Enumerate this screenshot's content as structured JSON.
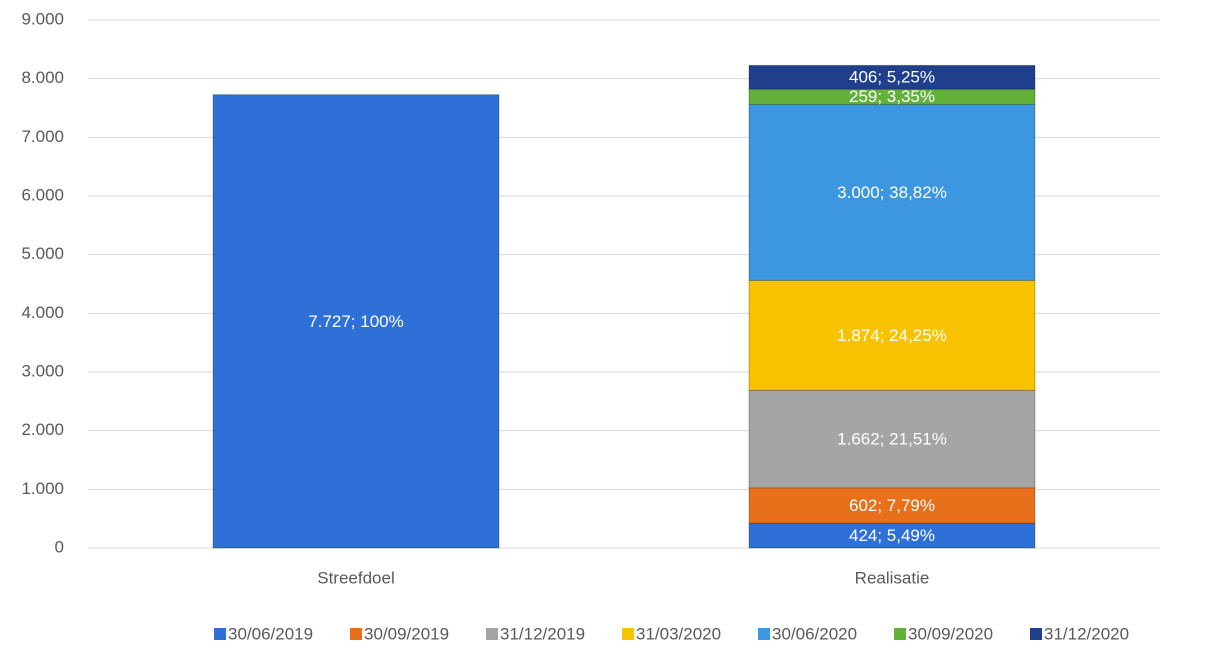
{
  "chart_data": {
    "type": "stacked_bar",
    "categories": [
      "Streefdoel",
      "Realisatie"
    ],
    "series": [
      {
        "name": "30/06/2019",
        "color": "#2f6fd8",
        "values": [
          7727,
          424
        ],
        "value_labels": [
          "7.727; 100%",
          "424; 5,49%"
        ]
      },
      {
        "name": "30/09/2019",
        "color": "#e8701a",
        "values": [
          null,
          602
        ],
        "value_labels": [
          null,
          "602; 7,79%"
        ]
      },
      {
        "name": "31/12/2019",
        "color": "#a5a5a5",
        "values": [
          null,
          1662
        ],
        "value_labels": [
          null,
          "1.662; 21,51%"
        ]
      },
      {
        "name": "31/03/2020",
        "color": "#f7c300",
        "values": [
          null,
          1874
        ],
        "value_labels": [
          null,
          "1.874; 24,25%"
        ]
      },
      {
        "name": "30/06/2020",
        "color": "#3c96e0",
        "values": [
          null,
          3000
        ],
        "value_labels": [
          null,
          "3.000; 38,82%"
        ]
      },
      {
        "name": "30/09/2020",
        "color": "#62b23a",
        "values": [
          null,
          259
        ],
        "value_labels": [
          null,
          "259; 3,35%"
        ]
      },
      {
        "name": "31/12/2020",
        "color": "#1f3f8c",
        "values": [
          null,
          406
        ],
        "value_labels": [
          null,
          "406; 5,25%"
        ]
      }
    ],
    "ylim": [
      0,
      9000
    ],
    "yticks": [
      0,
      {
        "value": 1000,
        "label": "1.000"
      },
      {
        "value": 2000,
        "label": "2.000"
      },
      {
        "value": 3000,
        "label": "3.000"
      },
      {
        "value": 4000,
        "label": "4.000"
      },
      {
        "value": 5000,
        "label": "5.000"
      },
      {
        "value": 6000,
        "label": "6.000"
      },
      {
        "value": 7000,
        "label": "7.000"
      },
      {
        "value": 8000,
        "label": "8.000"
      },
      {
        "value": 9000,
        "label": "9.000"
      }
    ],
    "grid": true,
    "legend": "bottom"
  }
}
